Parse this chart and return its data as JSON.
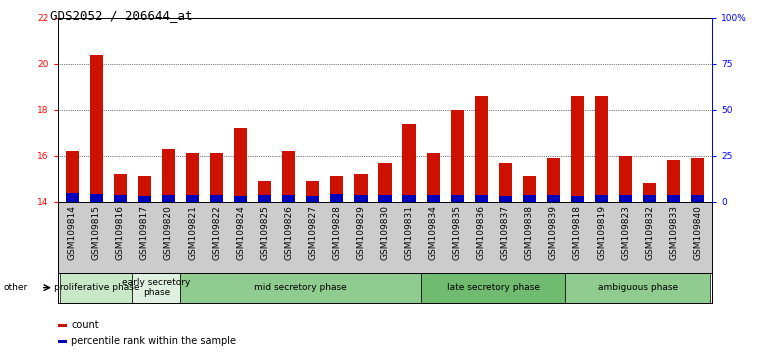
{
  "title": "GDS2052 / 206644_at",
  "samples": [
    "GSM109814",
    "GSM109815",
    "GSM109816",
    "GSM109817",
    "GSM109820",
    "GSM109821",
    "GSM109822",
    "GSM109824",
    "GSM109825",
    "GSM109826",
    "GSM109827",
    "GSM109828",
    "GSM109829",
    "GSM109830",
    "GSM109831",
    "GSM109834",
    "GSM109835",
    "GSM109836",
    "GSM109837",
    "GSM109838",
    "GSM109839",
    "GSM109818",
    "GSM109819",
    "GSM109823",
    "GSM109832",
    "GSM109833",
    "GSM109840"
  ],
  "count_values": [
    16.2,
    20.4,
    15.2,
    15.1,
    16.3,
    16.1,
    16.1,
    17.2,
    14.9,
    16.2,
    14.9,
    15.1,
    15.2,
    15.7,
    17.4,
    16.1,
    18.0,
    18.6,
    15.7,
    15.1,
    15.9,
    18.6,
    18.6,
    16.0,
    14.8,
    15.8,
    15.9
  ],
  "percentile_values": [
    0.38,
    0.32,
    0.28,
    0.24,
    0.28,
    0.28,
    0.28,
    0.24,
    0.28,
    0.28,
    0.24,
    0.32,
    0.28,
    0.28,
    0.28,
    0.28,
    0.28,
    0.28,
    0.24,
    0.28,
    0.28,
    0.24,
    0.28,
    0.28,
    0.28,
    0.28,
    0.28
  ],
  "phase_groups": [
    {
      "label": "proliferative phase",
      "start": 0,
      "end": 3,
      "color": "#c8e8c8"
    },
    {
      "label": "early secretory\nphase",
      "start": 3,
      "end": 5,
      "color": "#e0f0e0"
    },
    {
      "label": "mid secretory phase",
      "start": 5,
      "end": 15,
      "color": "#90cc90"
    },
    {
      "label": "late secretory phase",
      "start": 15,
      "end": 21,
      "color": "#70bb70"
    },
    {
      "label": "ambiguous phase",
      "start": 21,
      "end": 27,
      "color": "#90cc90"
    }
  ],
  "ylim_left": [
    14,
    22
  ],
  "ylim_right": [
    0,
    100
  ],
  "yticks_left": [
    14,
    16,
    18,
    20,
    22
  ],
  "yticks_right": [
    0,
    25,
    50,
    75,
    100
  ],
  "ytick_labels_right": [
    "0",
    "25",
    "50",
    "75",
    "100%"
  ],
  "bar_width": 0.55,
  "count_color": "#cc1100",
  "percentile_color": "#0000bb",
  "bg_color": "#d0d0d0",
  "plot_bg": "#ffffff",
  "title_fontsize": 9,
  "tick_fontsize": 6.5,
  "phase_fontsize": 6.5,
  "other_label": "other"
}
